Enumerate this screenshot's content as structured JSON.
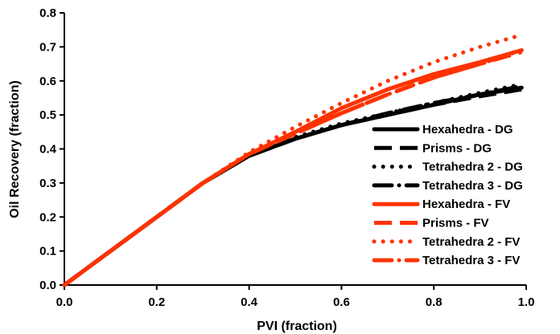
{
  "chart_data": {
    "type": "line",
    "title": "",
    "xlabel": "PVI (fraction)",
    "ylabel": "Oil Recovery (fraction)",
    "xlim": [
      0,
      1
    ],
    "ylim": [
      0,
      0.8
    ],
    "x_ticks": [
      "0.0",
      "0.2",
      "0.4",
      "0.6",
      "0.8",
      "1.0"
    ],
    "y_ticks": [
      "0.0",
      "0.1",
      "0.2",
      "0.3",
      "0.4",
      "0.5",
      "0.6",
      "0.7",
      "0.8"
    ],
    "grid": false,
    "legend_position": "right",
    "colors": {
      "dg": "#000000",
      "fv": "#ff3300"
    },
    "series": [
      {
        "name": "Hexahedra - DG",
        "color": "#000000",
        "style": "solid",
        "x": [
          0,
          0.1,
          0.2,
          0.3,
          0.4,
          0.5,
          0.6,
          0.7,
          0.8,
          0.9,
          0.99
        ],
        "y": [
          0,
          0.1,
          0.2,
          0.3,
          0.38,
          0.43,
          0.47,
          0.5,
          0.53,
          0.56,
          0.58
        ]
      },
      {
        "name": "Prisms - DG",
        "color": "#000000",
        "style": "dash",
        "x": [
          0,
          0.1,
          0.2,
          0.3,
          0.4,
          0.5,
          0.6,
          0.7,
          0.8,
          0.9,
          0.99
        ],
        "y": [
          0,
          0.1,
          0.2,
          0.3,
          0.38,
          0.43,
          0.47,
          0.5,
          0.53,
          0.555,
          0.575
        ]
      },
      {
        "name": "Tetrahedra 2 - DG",
        "color": "#000000",
        "style": "dot",
        "x": [
          0,
          0.1,
          0.2,
          0.3,
          0.4,
          0.5,
          0.6,
          0.7,
          0.8,
          0.9,
          0.99
        ],
        "y": [
          0,
          0.1,
          0.2,
          0.3,
          0.385,
          0.435,
          0.475,
          0.505,
          0.535,
          0.565,
          0.59
        ]
      },
      {
        "name": "Tetrahedra 3 - DG",
        "color": "#000000",
        "style": "dashdot",
        "x": [
          0,
          0.1,
          0.2,
          0.3,
          0.4,
          0.5,
          0.6,
          0.7,
          0.8,
          0.9,
          0.99
        ],
        "y": [
          0,
          0.1,
          0.2,
          0.3,
          0.38,
          0.43,
          0.47,
          0.505,
          0.535,
          0.56,
          0.585
        ]
      },
      {
        "name": "Hexahedra - FV",
        "color": "#ff3300",
        "style": "solid",
        "x": [
          0,
          0.1,
          0.2,
          0.3,
          0.4,
          0.5,
          0.6,
          0.7,
          0.8,
          0.9,
          0.99
        ],
        "y": [
          0,
          0.1,
          0.2,
          0.3,
          0.385,
          0.45,
          0.52,
          0.575,
          0.62,
          0.655,
          0.69
        ]
      },
      {
        "name": "Prisms - FV",
        "color": "#ff3300",
        "style": "dash",
        "x": [
          0,
          0.1,
          0.2,
          0.3,
          0.4,
          0.5,
          0.6,
          0.7,
          0.8,
          0.9,
          0.99
        ],
        "y": [
          0,
          0.1,
          0.2,
          0.3,
          0.385,
          0.445,
          0.505,
          0.56,
          0.61,
          0.65,
          0.685
        ]
      },
      {
        "name": "Tetrahedra 2 - FV",
        "color": "#ff3300",
        "style": "dot",
        "x": [
          0,
          0.1,
          0.2,
          0.3,
          0.4,
          0.5,
          0.6,
          0.7,
          0.8,
          0.9,
          0.99
        ],
        "y": [
          0,
          0.1,
          0.2,
          0.3,
          0.39,
          0.465,
          0.535,
          0.6,
          0.655,
          0.7,
          0.735
        ]
      },
      {
        "name": "Tetrahedra 3 - FV",
        "color": "#ff3300",
        "style": "dashdot",
        "x": [
          0,
          0.1,
          0.2,
          0.3,
          0.4,
          0.5,
          0.6,
          0.7,
          0.8,
          0.9,
          0.99
        ],
        "y": [
          0,
          0.1,
          0.2,
          0.3,
          0.385,
          0.445,
          0.505,
          0.56,
          0.61,
          0.65,
          0.69
        ]
      }
    ]
  }
}
